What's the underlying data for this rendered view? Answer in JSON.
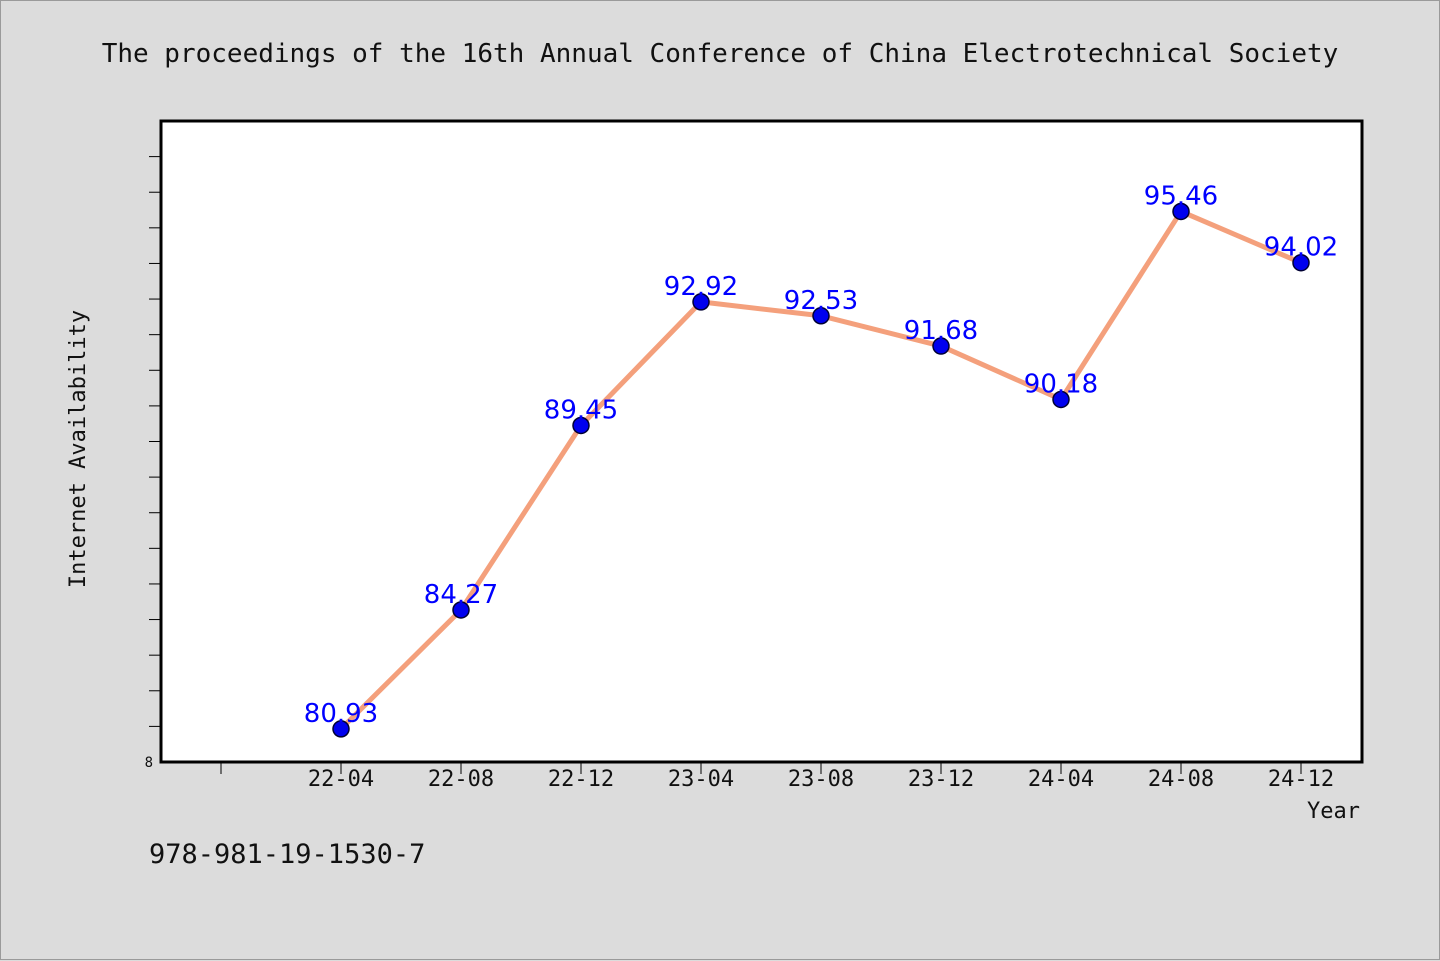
{
  "chart_data": {
    "type": "line",
    "title": "The proceedings of the 16th Annual Conference of China Electrotechnical Society",
    "xlabel": "Year",
    "ylabel": "Internet Availability",
    "categories": [
      "22-04",
      "22-08",
      "22-12",
      "23-04",
      "23-08",
      "23-12",
      "24-04",
      "24-08",
      "24-12"
    ],
    "series": [
      {
        "values": [
          80.93,
          84.27,
          89.45,
          92.92,
          92.53,
          91.68,
          90.18,
          95.46,
          94.02
        ]
      }
    ],
    "data_labels": [
      "80.93",
      "84.27",
      "89.45",
      "92.92",
      "92.53",
      "91.68",
      "90.18",
      "95.46",
      "94.02"
    ],
    "ylim": [
      80.0,
      98.0
    ],
    "y_tick_labels": [
      "8"
    ],
    "grid": false,
    "colors": {
      "line": "#f4a07c",
      "marker": "#0000ee",
      "label": "#0000ff",
      "background": "#dcdcdc",
      "plot_background": "#ffffff"
    }
  },
  "footer": {
    "isbn": "978-981-19-1530-7"
  }
}
